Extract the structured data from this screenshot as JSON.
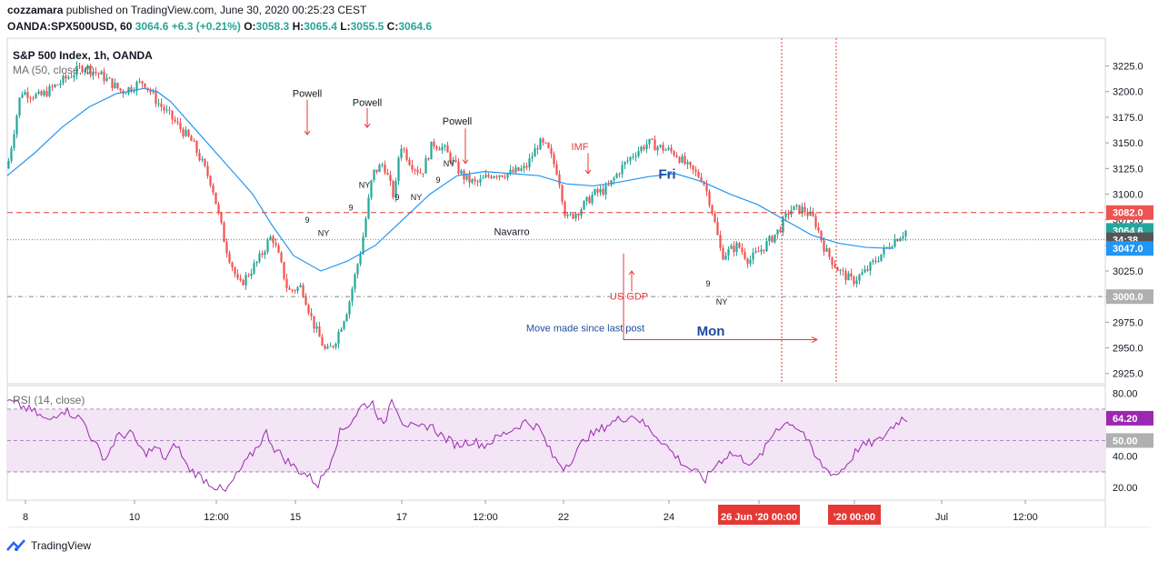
{
  "header": {
    "author": "cozzamara",
    "published_text": "published on TradingView.com, June 30, 2020 00:25:23 CEST",
    "symbol": "OANDA:SPX500USD, 60",
    "last": "3064.6",
    "change": "+6.3 (+0.21%)",
    "o_label": "O:",
    "o_value": "3058.3",
    "h_label": "H:",
    "h_value": "3065.4",
    "l_label": "L:",
    "l_value": "3055.5",
    "c_label": "C:",
    "c_value": "3064.6"
  },
  "legend": {
    "main_title": "S&P 500 Index, 1h, OANDA",
    "ma_label": "MA (50, close, 0)",
    "rsi_label": "RSI (14, close)"
  },
  "colors": {
    "up": "#26a69a",
    "down": "#ef5350",
    "ma": "#2196f3",
    "rsi": "#9c27b0",
    "rsi_band": "#f3e5f5",
    "annotation_red": "#e53935",
    "annotation_blue": "#1e4b9e",
    "axis_text": "#131722"
  },
  "footer": {
    "brand": "TradingView"
  },
  "chart_data": [
    {
      "type": "candlestick",
      "title": "S&P 500 Index, 1h, OANDA",
      "ylim": [
        2915,
        3245
      ],
      "yticks": [
        3225,
        3200,
        3175,
        3150,
        3125,
        3100,
        3075,
        3050,
        3025,
        3000,
        2975,
        2950,
        2925
      ],
      "ytick_labels": [
        "3225.0",
        "3200.0",
        "3175.0",
        "3150.0",
        "3125.0",
        "3100.0",
        "3075.0",
        "3050.0",
        "3025.0",
        "3000.0",
        "2975.0",
        "2950.0",
        "2925.0"
      ],
      "xticks": [
        "8",
        "10",
        "12:00",
        "15",
        "17",
        "12:00",
        "22",
        "24",
        "26 Jun '20  00:00",
        "'20  00:00",
        "Jul",
        "12:00"
      ],
      "price_labels": [
        {
          "text": "3082.0",
          "value": 3082.0,
          "color": "#ef5350"
        },
        {
          "text": "3064.6",
          "value": 3064.6,
          "color": "#26a69a"
        },
        {
          "text": "34:38",
          "value": 3055.5,
          "color": "#555555"
        },
        {
          "text": "3047.0",
          "value": 3047.0,
          "color": "#2196f3"
        },
        {
          "text": "3000.0",
          "value": 3000.0,
          "color": "#b0b0b0"
        }
      ],
      "close_path": [
        [
          0,
          3125
        ],
        [
          5,
          3200
        ],
        [
          12,
          3195
        ],
        [
          20,
          3210
        ],
        [
          28,
          3225
        ],
        [
          35,
          3215
        ],
        [
          42,
          3200
        ],
        [
          50,
          3210
        ],
        [
          55,
          3190
        ],
        [
          60,
          3175
        ],
        [
          68,
          3150
        ],
        [
          75,
          3110
        ],
        [
          80,
          3050
        ],
        [
          85,
          3010
        ],
        [
          92,
          3035
        ],
        [
          97,
          3060
        ],
        [
          100,
          3035
        ],
        [
          103,
          3005
        ],
        [
          108,
          3010
        ],
        [
          112,
          2975
        ],
        [
          117,
          2945
        ],
        [
          120,
          2955
        ],
        [
          125,
          2990
        ],
        [
          130,
          3050
        ],
        [
          134,
          3120
        ],
        [
          138,
          3130
        ],
        [
          142,
          3095
        ],
        [
          144,
          3150
        ],
        [
          148,
          3130
        ],
        [
          152,
          3120
        ],
        [
          156,
          3150
        ],
        [
          160,
          3145
        ],
        [
          165,
          3125
        ],
        [
          168,
          3115
        ],
        [
          172,
          3110
        ],
        [
          178,
          3120
        ],
        [
          184,
          3120
        ],
        [
          190,
          3125
        ],
        [
          195,
          3150
        ],
        [
          198,
          3145
        ],
        [
          202,
          3120
        ],
        [
          205,
          3075
        ],
        [
          210,
          3085
        ],
        [
          215,
          3100
        ],
        [
          220,
          3105
        ],
        [
          225,
          3125
        ],
        [
          230,
          3140
        ],
        [
          235,
          3150
        ],
        [
          240,
          3145
        ],
        [
          245,
          3140
        ],
        [
          250,
          3125
        ],
        [
          255,
          3115
        ],
        [
          258,
          3090
        ],
        [
          262,
          3040
        ],
        [
          268,
          3050
        ],
        [
          272,
          3035
        ],
        [
          278,
          3050
        ],
        [
          283,
          3065
        ],
        [
          287,
          3085
        ],
        [
          292,
          3085
        ],
        [
          296,
          3075
        ],
        [
          300,
          3045
        ],
        [
          305,
          3025
        ],
        [
          310,
          3015
        ],
        [
          315,
          3025
        ],
        [
          320,
          3040
        ],
        [
          325,
          3055
        ],
        [
          330,
          3065
        ]
      ],
      "ma_path": [
        [
          0,
          3118
        ],
        [
          10,
          3140
        ],
        [
          20,
          3165
        ],
        [
          30,
          3185
        ],
        [
          40,
          3198
        ],
        [
          50,
          3203
        ],
        [
          55,
          3200
        ],
        [
          60,
          3190
        ],
        [
          70,
          3160
        ],
        [
          80,
          3130
        ],
        [
          90,
          3100
        ],
        [
          97,
          3070
        ],
        [
          105,
          3040
        ],
        [
          115,
          3025
        ],
        [
          125,
          3035
        ],
        [
          135,
          3050
        ],
        [
          145,
          3075
        ],
        [
          155,
          3100
        ],
        [
          165,
          3118
        ],
        [
          175,
          3122
        ],
        [
          185,
          3120
        ],
        [
          195,
          3118
        ],
        [
          205,
          3110
        ],
        [
          215,
          3108
        ],
        [
          225,
          3112
        ],
        [
          235,
          3117
        ],
        [
          245,
          3120
        ],
        [
          255,
          3112
        ],
        [
          265,
          3100
        ],
        [
          275,
          3090
        ],
        [
          285,
          3075
        ],
        [
          295,
          3060
        ],
        [
          305,
          3052
        ],
        [
          315,
          3048
        ],
        [
          325,
          3047
        ]
      ],
      "annotations": [
        {
          "text": "Powell",
          "x": 110,
          "y": 3195,
          "color": "#131722"
        },
        {
          "text": "Powell",
          "x": 132,
          "y": 3186,
          "color": "#131722"
        },
        {
          "text": "Powell",
          "x": 165,
          "y": 3168,
          "color": "#131722"
        },
        {
          "text": "IMF",
          "x": 210,
          "y": 3143,
          "color": "#e53935"
        },
        {
          "text": "Navarro",
          "x": 185,
          "y": 3060,
          "color": "#131722"
        },
        {
          "text": "US GDP",
          "x": 228,
          "y": 2997,
          "color": "#e53935"
        },
        {
          "text": "Fri",
          "x": 242,
          "y": 3115,
          "color": "#1e4b9e"
        },
        {
          "text": "Mon",
          "x": 258,
          "y": 2962,
          "color": "#1e4b9e"
        },
        {
          "text": "Move made since last post",
          "x": 212,
          "y": 2966,
          "color": "#1e4b9e"
        }
      ],
      "markers": [
        {
          "text": "NY",
          "x": 116,
          "y": 3059
        },
        {
          "text": "9",
          "x": 110,
          "y": 3072
        },
        {
          "text": "9",
          "x": 126,
          "y": 3084
        },
        {
          "text": "NY",
          "x": 131,
          "y": 3106
        },
        {
          "text": "9",
          "x": 143,
          "y": 3094
        },
        {
          "text": "NY",
          "x": 150,
          "y": 3094
        },
        {
          "text": "NY",
          "x": 162,
          "y": 3127
        },
        {
          "text": "9",
          "x": 158,
          "y": 3111
        },
        {
          "text": "9",
          "x": 257,
          "y": 3010
        },
        {
          "text": "NY",
          "x": 262,
          "y": 2992
        }
      ],
      "hlines": [
        {
          "value": 3082.0,
          "color": "#e53935",
          "style": "dashed"
        },
        {
          "value": 3055.5,
          "color": "#26a69a",
          "style": "dotted"
        },
        {
          "value": 3000.0,
          "color": "#888888",
          "style": "dashdot"
        }
      ]
    },
    {
      "type": "line",
      "title": "RSI (14, close)",
      "ylim": [
        12,
        85
      ],
      "yticks": [
        80,
        40,
        20
      ],
      "ytick_labels": [
        "80.00",
        "40.00",
        "20.00"
      ],
      "band": [
        30,
        70
      ],
      "midline": 50,
      "labels": [
        {
          "text": "64.20",
          "value": 64.2,
          "color": "#9c27b0"
        },
        {
          "text": "50.00",
          "value": 50,
          "color": "#b0b0b0"
        }
      ],
      "path": [
        [
          0,
          75
        ],
        [
          5,
          72
        ],
        [
          10,
          68
        ],
        [
          15,
          62
        ],
        [
          20,
          70
        ],
        [
          25,
          66
        ],
        [
          28,
          62
        ],
        [
          32,
          48
        ],
        [
          36,
          38
        ],
        [
          40,
          52
        ],
        [
          45,
          55
        ],
        [
          50,
          42
        ],
        [
          55,
          45
        ],
        [
          58,
          38
        ],
        [
          62,
          48
        ],
        [
          66,
          33
        ],
        [
          70,
          28
        ],
        [
          75,
          22
        ],
        [
          80,
          17
        ],
        [
          85,
          30
        ],
        [
          90,
          42
        ],
        [
          95,
          55
        ],
        [
          98,
          45
        ],
        [
          102,
          38
        ],
        [
          106,
          32
        ],
        [
          110,
          28
        ],
        [
          114,
          22
        ],
        [
          118,
          35
        ],
        [
          122,
          55
        ],
        [
          126,
          62
        ],
        [
          130,
          72
        ],
        [
          134,
          74
        ],
        [
          138,
          58
        ],
        [
          141,
          78
        ],
        [
          145,
          62
        ],
        [
          150,
          57
        ],
        [
          155,
          60
        ],
        [
          160,
          52
        ],
        [
          165,
          47
        ],
        [
          170,
          50
        ],
        [
          175,
          47
        ],
        [
          180,
          52
        ],
        [
          185,
          57
        ],
        [
          190,
          62
        ],
        [
          195,
          58
        ],
        [
          200,
          40
        ],
        [
          204,
          33
        ],
        [
          208,
          40
        ],
        [
          212,
          52
        ],
        [
          216,
          55
        ],
        [
          220,
          60
        ],
        [
          225,
          64
        ],
        [
          230,
          66
        ],
        [
          235,
          58
        ],
        [
          240,
          50
        ],
        [
          244,
          42
        ],
        [
          248,
          35
        ],
        [
          252,
          30
        ],
        [
          256,
          25
        ],
        [
          260,
          35
        ],
        [
          265,
          42
        ],
        [
          270,
          38
        ],
        [
          274,
          35
        ],
        [
          278,
          45
        ],
        [
          282,
          58
        ],
        [
          287,
          62
        ],
        [
          292,
          55
        ],
        [
          296,
          40
        ],
        [
          300,
          32
        ],
        [
          304,
          28
        ],
        [
          308,
          35
        ],
        [
          312,
          45
        ],
        [
          316,
          48
        ],
        [
          320,
          50
        ],
        [
          324,
          58
        ],
        [
          328,
          64
        ]
      ]
    }
  ]
}
